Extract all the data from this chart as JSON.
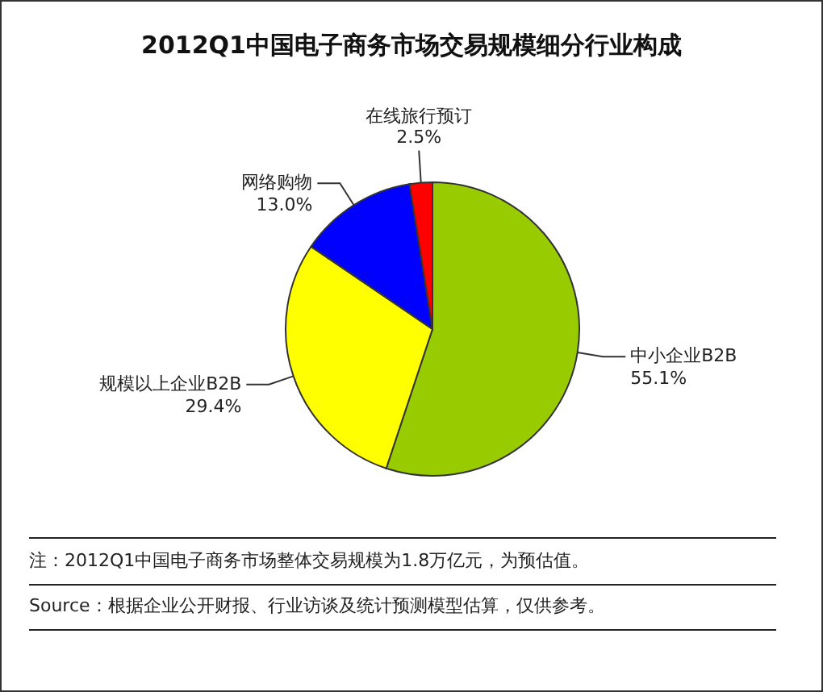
{
  "chart_data": {
    "type": "pie",
    "title": "2012Q1中国电子商务市场交易规模细分行业构成",
    "categories": [
      "中小企业B2B",
      "规模以上企业B2B",
      "网络购物",
      "在线旅行预订"
    ],
    "values": [
      55.1,
      29.4,
      13.0,
      2.5
    ],
    "value_labels": [
      "55.1%",
      "29.4%",
      "13.0%",
      "2.5%"
    ],
    "colors": [
      "#99cc00",
      "#ffff00",
      "#0000ff",
      "#ff0000"
    ],
    "legend": false,
    "annotations": [
      "注：2012Q1中国电子商务市场整体交易规模为1.8万亿元，为预估值。",
      "Source：根据企业公开财报、行业访谈及统计预测模型估算，仅供参考。"
    ]
  }
}
